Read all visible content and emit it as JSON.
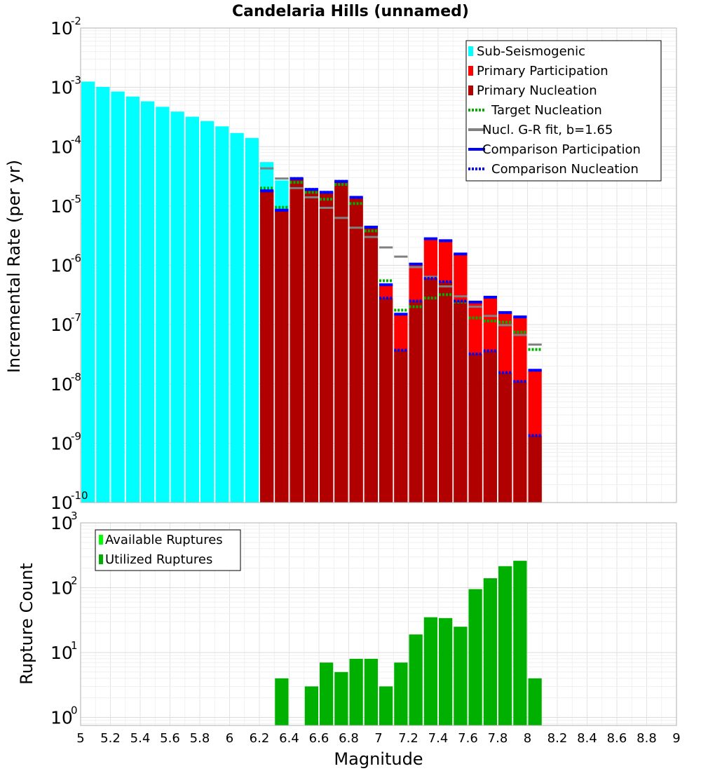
{
  "chart_data": [
    {
      "type": "bar",
      "title": "Candelaria Hills (unnamed)",
      "xlabel": "",
      "ylabel": "Incremental Rate (per yr)",
      "yscale": "log",
      "ylim": [
        1e-10,
        0.01
      ],
      "xlim": [
        5,
        9
      ],
      "y_tick_exponents": [
        "-10",
        "-9",
        "-8",
        "-7",
        "-6",
        "-5",
        "-4",
        "-3",
        "-2"
      ],
      "legend_position": "top-right",
      "legend": [
        {
          "label": "Sub-Seismogenic",
          "color": "#00ffff",
          "style": "bar"
        },
        {
          "label": "Primary Participation",
          "color": "#ff0000",
          "style": "bar"
        },
        {
          "label": "Primary Nucleation",
          "color": "#b00000",
          "style": "bar"
        },
        {
          "label": "Target Nucleation",
          "color": "#00b000",
          "style": "dotted"
        },
        {
          "label": "Nucl. G-R fit, b=1.65",
          "color": "#808080",
          "style": "solid"
        },
        {
          "label": "Comparison Participation",
          "color": "#0000ff",
          "style": "solid"
        },
        {
          "label": "Comparison Nucleation",
          "color": "#0000ff",
          "style": "dotted"
        }
      ],
      "series": [
        {
          "name": "Sub-Seismogenic",
          "x": [
            5.05,
            5.15,
            5.25,
            5.35,
            5.45,
            5.55,
            5.65,
            5.75,
            5.85,
            5.95,
            6.05,
            6.15,
            6.25,
            6.35
          ],
          "values": [
            0.00125,
            0.00102,
            0.00085,
            0.0007,
            0.00058,
            0.00047,
            0.00039,
            0.00032,
            0.00027,
            0.00022,
            0.00017,
            0.00014,
            5.5e-05,
            2.7e-05
          ]
        },
        {
          "name": "Primary Participation",
          "x": [
            6.25,
            6.35,
            6.45,
            6.55,
            6.65,
            6.75,
            6.85,
            6.95,
            7.05,
            7.15,
            7.25,
            7.35,
            7.45,
            7.55,
            7.65,
            7.75,
            7.85,
            7.95,
            8.05
          ],
          "values": [
            1.8e-05,
            8.5e-06,
            2.9e-05,
            1.9e-05,
            1.7e-05,
            2.6e-05,
            1.4e-05,
            4.4e-06,
            4.7e-07,
            1.5e-07,
            1.05e-06,
            2.8e-06,
            2.6e-06,
            1.55e-06,
            2.4e-07,
            2.9e-07,
            1.6e-07,
            1.35e-07,
            1.7e-08
          ]
        },
        {
          "name": "Primary Nucleation",
          "x": [
            6.25,
            6.35,
            6.45,
            6.55,
            6.65,
            6.75,
            6.85,
            6.95,
            7.05,
            7.15,
            7.25,
            7.35,
            7.45,
            7.55,
            7.65,
            7.75,
            7.85,
            7.95,
            8.05
          ],
          "values": [
            1.8e-05,
            8.5e-06,
            2.9e-05,
            1.9e-05,
            1.7e-05,
            2.6e-05,
            1.4e-05,
            4.4e-06,
            2.8e-07,
            3.7e-08,
            2.5e-07,
            6e-07,
            5.3e-07,
            2.5e-07,
            3.2e-08,
            3.6e-08,
            1.55e-08,
            1.1e-08,
            1.35e-09
          ]
        },
        {
          "name": "Target Nucleation",
          "x": [
            6.25,
            6.35,
            6.45,
            6.55,
            6.65,
            6.75,
            6.85,
            6.95,
            7.05,
            7.15,
            7.25,
            7.35,
            7.45,
            7.55,
            7.65,
            7.75,
            7.85,
            7.95,
            8.05
          ],
          "values": [
            2e-05,
            9.5e-06,
            2.5e-05,
            1.7e-05,
            1.3e-05,
            2.3e-05,
            1.1e-05,
            3.8e-06,
            5.5e-07,
            1.75e-07,
            2e-07,
            2.8e-07,
            3.2e-07,
            2.4e-07,
            1.3e-07,
            1.15e-07,
            1.1e-07,
            7.5e-08,
            3.8e-08
          ]
        },
        {
          "name": "Nucl. G-R fit, b=1.65",
          "x": [
            6.25,
            6.35,
            6.45,
            6.55,
            6.65,
            6.75,
            6.85,
            6.95,
            7.05,
            7.15,
            7.25,
            7.35,
            7.45,
            7.55,
            7.65,
            7.75,
            7.85,
            7.95,
            8.05
          ],
          "values": [
            4.3e-05,
            2.9e-05,
            2e-05,
            1.4e-05,
            9.3e-06,
            6.3e-06,
            4.3e-06,
            3e-06,
            2e-06,
            1.4e-06,
            9.3e-07,
            6.4e-07,
            4.4e-07,
            3e-07,
            2e-07,
            1.4e-07,
            9.8e-08,
            6.7e-08,
            4.6e-08
          ]
        },
        {
          "name": "Comparison Participation",
          "x": [
            6.25,
            6.35,
            6.45,
            6.55,
            6.65,
            6.75,
            6.85,
            6.95,
            7.05,
            7.15,
            7.25,
            7.35,
            7.45,
            7.55,
            7.65,
            7.75,
            7.85,
            7.95,
            8.05
          ],
          "values": [
            1.8e-05,
            8.5e-06,
            2.9e-05,
            1.9e-05,
            1.7e-05,
            2.6e-05,
            1.4e-05,
            4.4e-06,
            4.7e-07,
            1.5e-07,
            1.05e-06,
            2.8e-06,
            2.6e-06,
            1.55e-06,
            2.4e-07,
            2.9e-07,
            1.6e-07,
            1.35e-07,
            1.7e-08
          ]
        },
        {
          "name": "Comparison Nucleation",
          "x": [
            6.25,
            6.35,
            6.45,
            6.55,
            6.65,
            6.75,
            6.85,
            6.95,
            7.05,
            7.15,
            7.25,
            7.35,
            7.45,
            7.55,
            7.65,
            7.75,
            7.85,
            7.95,
            8.05
          ],
          "values": [
            1.8e-05,
            8.5e-06,
            2.9e-05,
            1.9e-05,
            1.7e-05,
            2.6e-05,
            1.4e-05,
            4.4e-06,
            2.8e-07,
            3.7e-08,
            2.5e-07,
            6e-07,
            5.3e-07,
            2.5e-07,
            3.2e-08,
            3.6e-08,
            1.55e-08,
            1.1e-08,
            1.35e-09
          ]
        }
      ]
    },
    {
      "type": "bar",
      "title": "",
      "xlabel": "Magnitude",
      "ylabel": "Rupture Count",
      "yscale": "log",
      "ylim": [
        0.75,
        1000
      ],
      "xlim": [
        5,
        9
      ],
      "x_ticks": [
        "5",
        "5.2",
        "5.4",
        "5.6",
        "5.8",
        "6",
        "6.2",
        "6.4",
        "6.6",
        "6.8",
        "7",
        "7.2",
        "7.4",
        "7.6",
        "7.8",
        "8",
        "8.2",
        "8.4",
        "8.6",
        "8.8",
        "9"
      ],
      "y_tick_exponents": [
        "0",
        "1",
        "2",
        "3"
      ],
      "legend_position": "top-left",
      "legend": [
        {
          "label": "Available Ruptures",
          "color": "#00ff00",
          "style": "bar"
        },
        {
          "label": "Utilized Ruptures",
          "color": "#00b000",
          "style": "bar"
        }
      ],
      "series": [
        {
          "name": "Utilized Ruptures",
          "x": [
            6.35,
            6.55,
            6.65,
            6.75,
            6.85,
            6.95,
            7.05,
            7.15,
            7.25,
            7.35,
            7.45,
            7.55,
            7.65,
            7.75,
            7.85,
            7.95,
            8.05
          ],
          "values": [
            4,
            3,
            7,
            5,
            8,
            8,
            3,
            7,
            19,
            35,
            34,
            25,
            95,
            140,
            215,
            260,
            4
          ]
        }
      ]
    }
  ]
}
